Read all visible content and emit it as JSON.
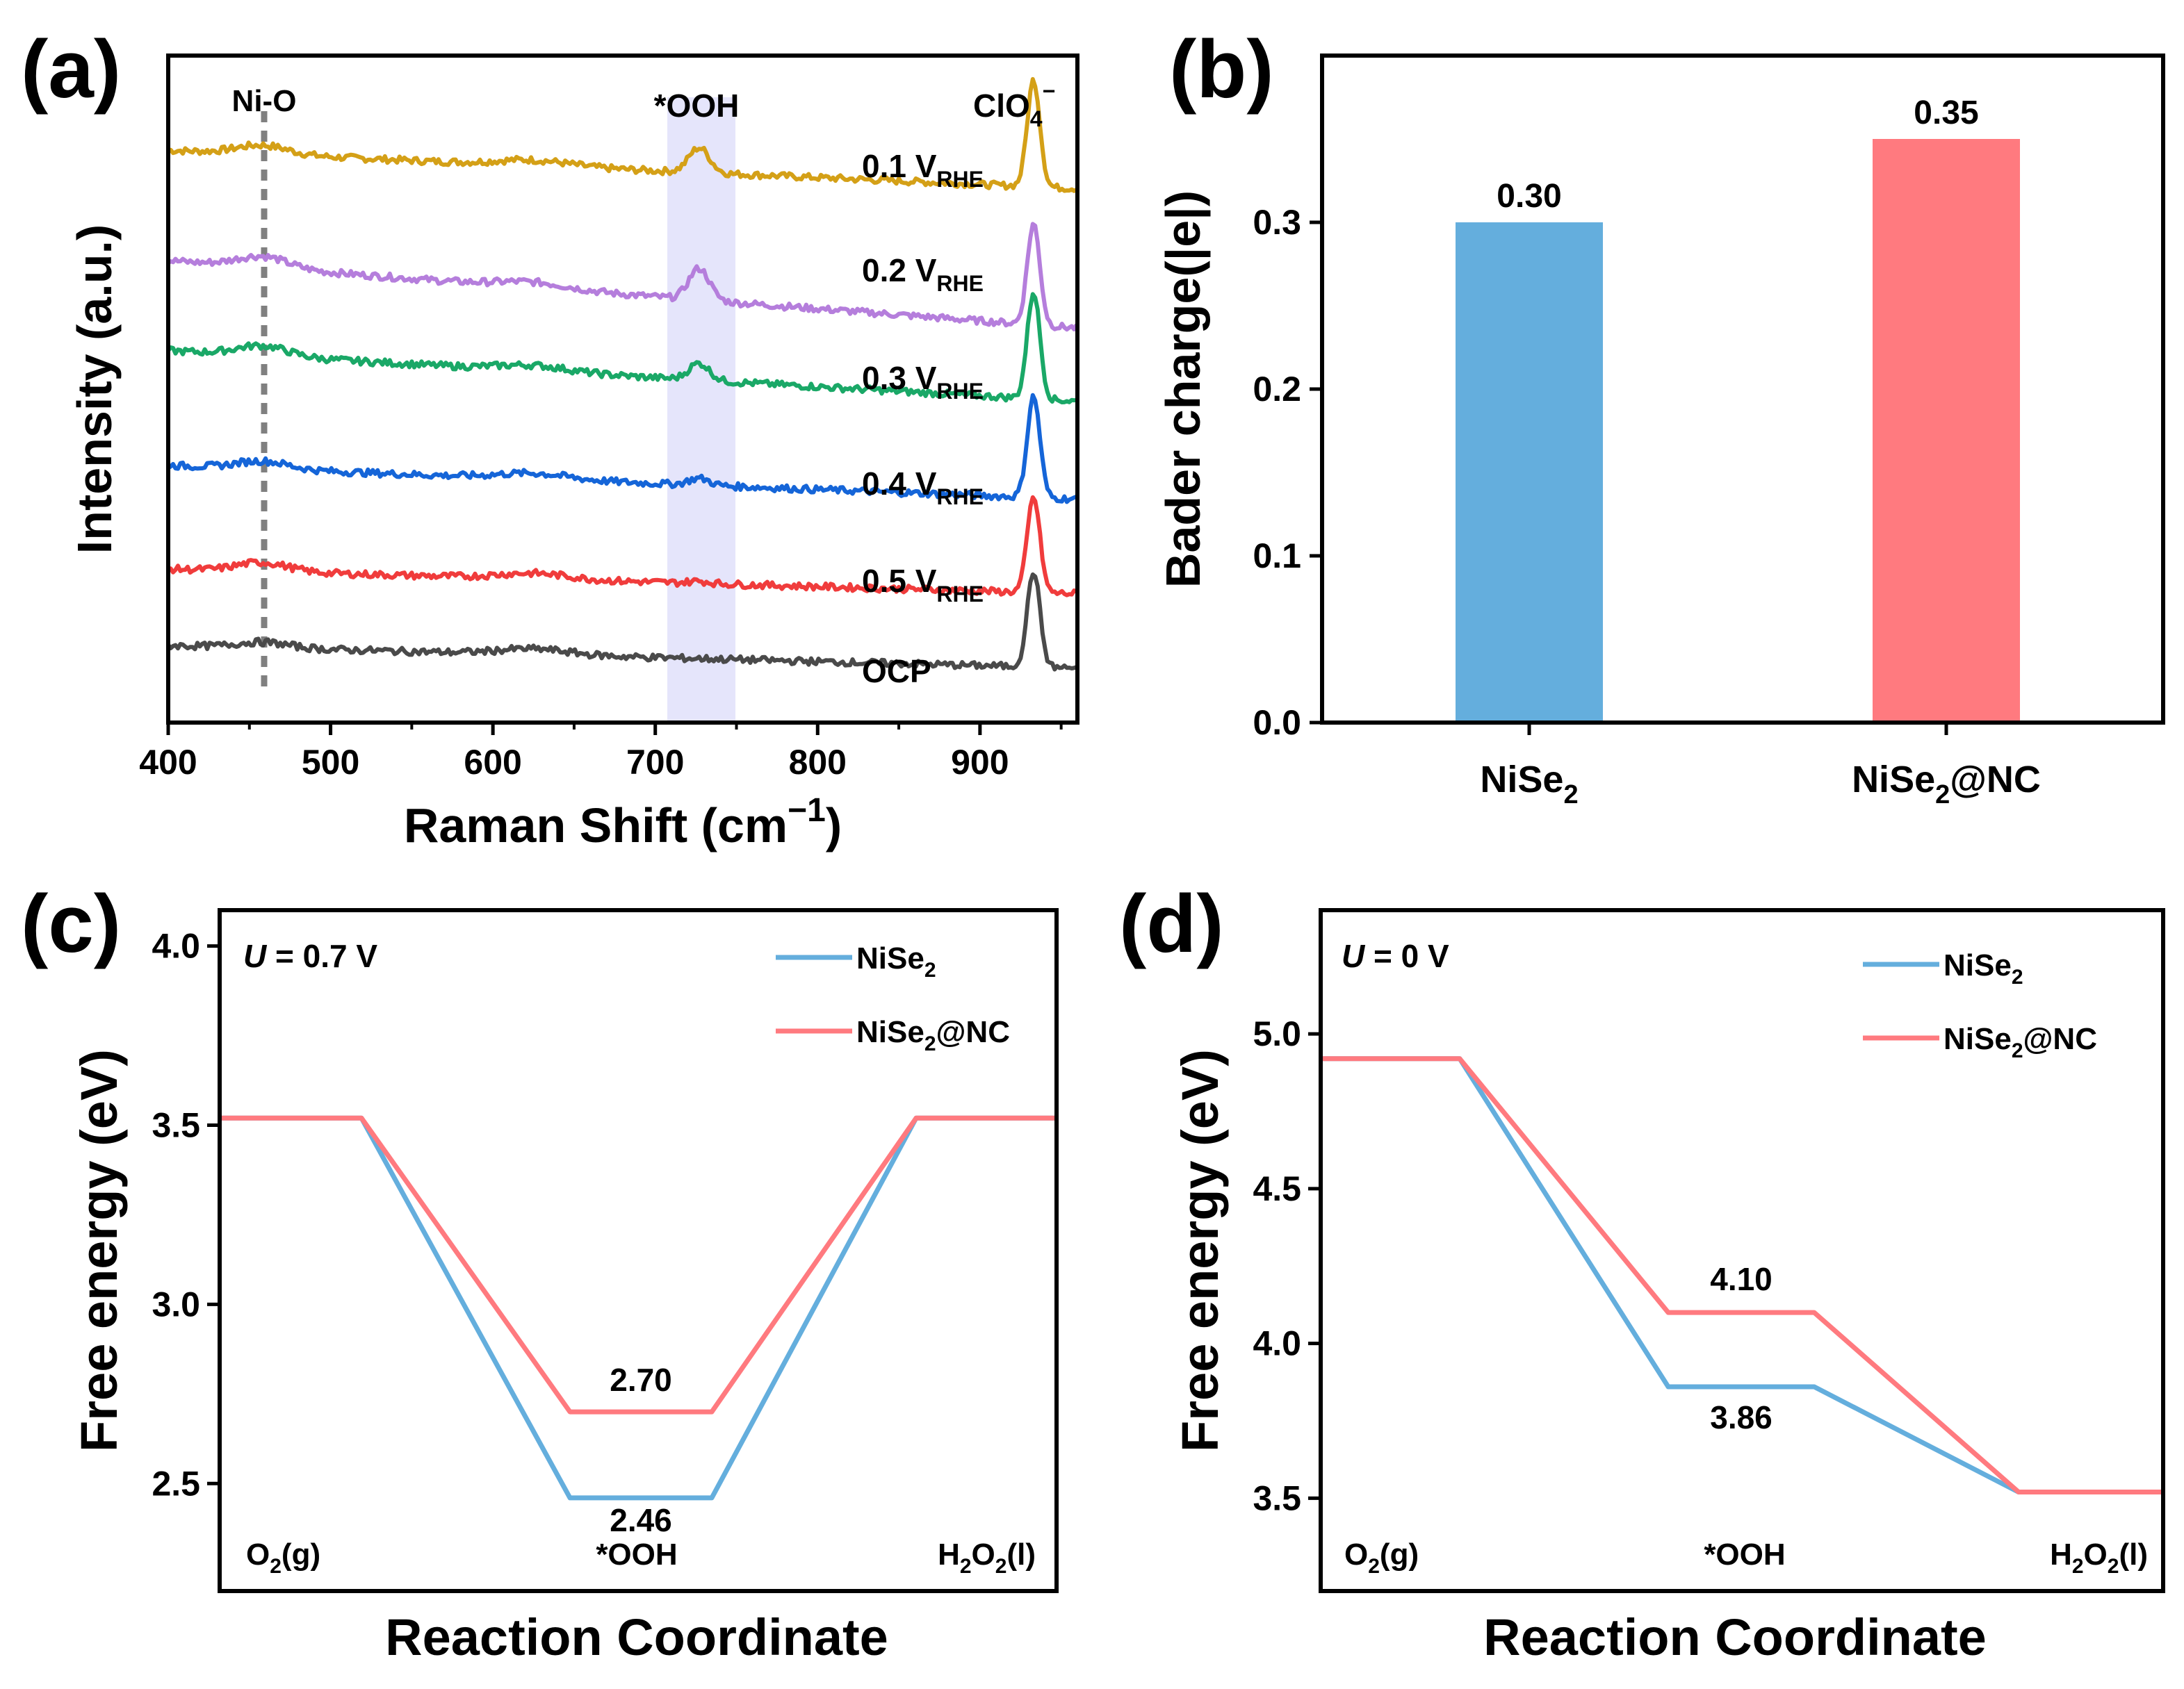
{
  "chart_data": [
    {
      "panel": "a",
      "panel_label": "(a)",
      "type": "line",
      "title": "",
      "xlabel": "Raman Shift (cm",
      "xlabel_sup": "−1",
      "xlabel_end": ")",
      "ylabel": "Intensity (a.u.)",
      "xlim": [
        400,
        960
      ],
      "xticks": [
        400,
        500,
        600,
        700,
        800,
        900
      ],
      "grid": false,
      "annotations": {
        "ni_o": "Ni-O",
        "ni_o_position": 458,
        "ooh": "*OOH",
        "ooh_band": [
          707,
          748
        ],
        "clo4": "ClO",
        "clo4_sub": "4",
        "clo4_sup": "−"
      },
      "series": [
        {
          "name": "0.1 V",
          "sub": "RHE",
          "color": "#D4A017",
          "baseline": 4.9,
          "slope": 0.34,
          "ni_o_peak": 0.08,
          "ooh_peak": 0.22,
          "clo4_peak": 0.95
        },
        {
          "name": "0.2 V",
          "sub": "RHE",
          "color": "#B57EDC",
          "baseline": 3.92,
          "slope": 0.6,
          "ni_o_peak": 0.1,
          "ooh_peak": 0.28,
          "clo4_peak": 0.9
        },
        {
          "name": "0.3 V",
          "sub": "RHE",
          "color": "#1AA867",
          "baseline": 3.12,
          "slope": 0.45,
          "ni_o_peak": 0.09,
          "ooh_peak": 0.15,
          "clo4_peak": 0.95
        },
        {
          "name": "0.4 V",
          "sub": "RHE",
          "color": "#1565D8",
          "baseline": 2.1,
          "slope": 0.3,
          "ni_o_peak": 0.07,
          "ooh_peak": 0.06,
          "clo4_peak": 0.9
        },
        {
          "name": "0.5 V",
          "sub": "RHE",
          "color": "#F03C3C",
          "baseline": 1.18,
          "slope": 0.22,
          "ni_o_peak": 0.08,
          "ooh_peak": 0.02,
          "clo4_peak": 0.85
        },
        {
          "name": "OCP",
          "sub": "",
          "color": "#4A4A4A",
          "baseline": 0.5,
          "slope": 0.2,
          "ni_o_peak": 0.05,
          "ooh_peak": 0.0,
          "clo4_peak": 0.85
        }
      ]
    },
    {
      "panel": "b",
      "panel_label": "(b)",
      "type": "bar",
      "ylabel": "Bader charge(|e|)",
      "ylim": [
        0.0,
        0.4
      ],
      "yticks": [
        "0.0",
        "0.1",
        "0.2",
        "0.3"
      ],
      "ytick_values": [
        0.0,
        0.1,
        0.2,
        0.3
      ],
      "categories": [
        {
          "main": "NiSe",
          "sub": "2",
          "tail": ""
        },
        {
          "main": "NiSe",
          "sub": "2",
          "tail": "@NC"
        }
      ],
      "values": [
        0.3,
        0.35
      ],
      "value_labels": [
        "0.30",
        "0.35"
      ],
      "colors": [
        "#64AEDD",
        "#FF7A7F"
      ]
    },
    {
      "panel": "c",
      "panel_label": "(c)",
      "type": "line",
      "ylabel": "Free energy (eV)",
      "xlabel": "Reaction Coordinate",
      "ylim": [
        2.2,
        4.1
      ],
      "yticks": [
        "2.5",
        "3.0",
        "3.5",
        "4.0"
      ],
      "ytick_values": [
        2.5,
        3.0,
        3.5,
        4.0
      ],
      "condition_var": "U",
      "condition_val": " = 0.7 V",
      "steps": [
        {
          "main": "O",
          "sub": "2",
          "mid": "(g)",
          "sub2": "",
          "tail": ""
        },
        {
          "main": "*OOH",
          "sub": "",
          "mid": "",
          "sub2": "",
          "tail": ""
        },
        {
          "main": "H",
          "sub": "2",
          "mid": "O",
          "sub2": "2",
          "tail": "(l)"
        }
      ],
      "series": [
        {
          "name": "NiSe",
          "sub": "2",
          "tail": "",
          "color": "#64AEDD",
          "values": [
            3.52,
            2.46,
            3.52
          ],
          "label": "2.46"
        },
        {
          "name": "NiSe",
          "sub": "2",
          "tail": "@NC",
          "color": "#FF7A7F",
          "values": [
            3.52,
            2.7,
            3.52
          ],
          "label": "2.70"
        }
      ]
    },
    {
      "panel": "d",
      "panel_label": "(d)",
      "type": "line",
      "ylabel": "Free energy (eV)",
      "xlabel": "Reaction Coordinate",
      "ylim": [
        3.2,
        5.4
      ],
      "yticks": [
        "3.5",
        "4.0",
        "4.5",
        "5.0"
      ],
      "ytick_values": [
        3.5,
        4.0,
        4.5,
        5.0
      ],
      "condition_var": "U",
      "condition_val": " = 0 V",
      "steps": [
        {
          "main": "O",
          "sub": "2",
          "mid": "(g)",
          "sub2": "",
          "tail": ""
        },
        {
          "main": "*OOH",
          "sub": "",
          "mid": "",
          "sub2": "",
          "tail": ""
        },
        {
          "main": "H",
          "sub": "2",
          "mid": "O",
          "sub2": "2",
          "tail": "(l)"
        }
      ],
      "series": [
        {
          "name": "NiSe",
          "sub": "2",
          "tail": "",
          "color": "#64AEDD",
          "values": [
            4.92,
            3.86,
            3.52
          ],
          "label": "3.86"
        },
        {
          "name": "NiSe",
          "sub": "2",
          "tail": "@NC",
          "color": "#FF7A7F",
          "values": [
            4.92,
            4.1,
            3.52
          ],
          "label": "4.10"
        }
      ]
    }
  ]
}
